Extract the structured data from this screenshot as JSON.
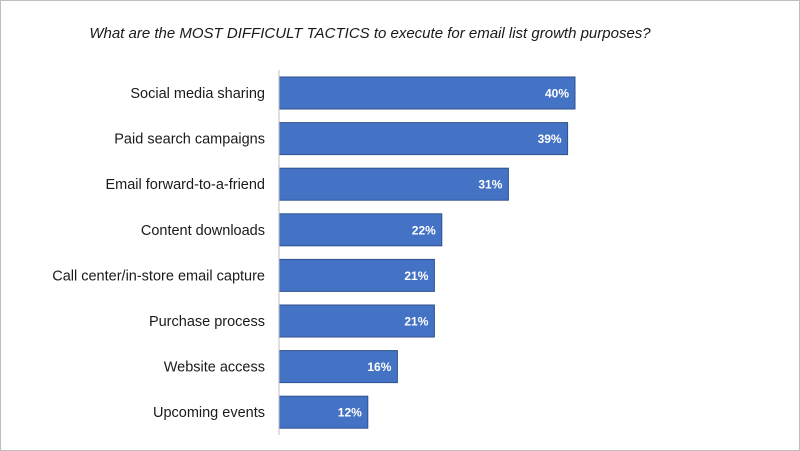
{
  "chart_data": {
    "type": "bar",
    "orientation": "horizontal",
    "title": "What are the MOST DIFFICULT TACTICS to execute for email list growth purposes?",
    "categories": [
      "Social media sharing",
      "Paid search campaigns",
      "Email forward-to-a-friend",
      "Content downloads",
      "Call center/in-store email capture",
      "Purchase process",
      "Website access",
      "Upcoming events"
    ],
    "values": [
      40,
      39,
      31,
      22,
      21,
      21,
      16,
      12
    ],
    "value_labels": [
      "40%",
      "39%",
      "31%",
      "22%",
      "21%",
      "21%",
      "16%",
      "12%"
    ],
    "unit": "%",
    "xlabel": "",
    "ylabel": "",
    "xlim": [
      0,
      100
    ],
    "grid": false,
    "legend": "none",
    "bar_color": "#4472c4",
    "bar_edge_color": "#2f528f"
  }
}
